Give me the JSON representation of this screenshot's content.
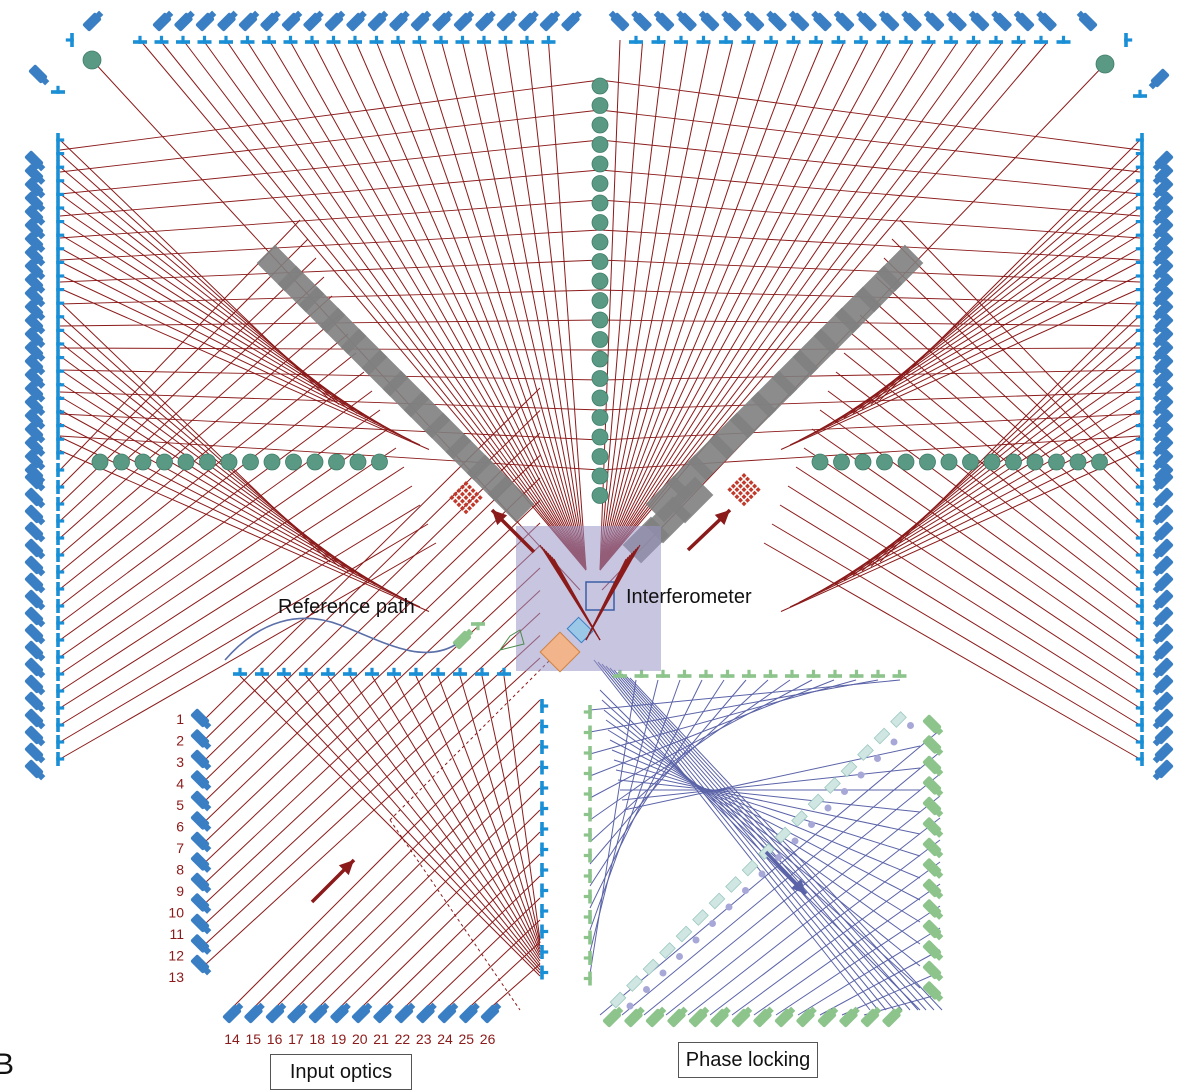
{
  "labels": {
    "interferometer": "Interferometer",
    "reference_path": "Reference path",
    "input_optics": "Input optics",
    "phase_locking": "Phase locking",
    "panel_letter": "B"
  },
  "input_numbers_left": [
    "1",
    "2",
    "3",
    "4",
    "5",
    "6",
    "7",
    "8",
    "9",
    "10",
    "11",
    "12",
    "13"
  ],
  "input_numbers_bottom": [
    "14",
    "15",
    "16",
    "17",
    "18",
    "19",
    "20",
    "21",
    "22",
    "23",
    "24",
    "25",
    "26"
  ],
  "colors": {
    "beam_red": "#8b1a1a",
    "beam_blue": "#5b63a8",
    "fiber_blue": "#3a7fc4",
    "mirror_blue": "#1a8fd6",
    "green_optic": "#5a9a84",
    "green_light": "#8cc48c",
    "gray_block": "#7f7f7f",
    "interferometer_box": "#9b95c7",
    "beamsplitter_orange": "#f2b48a"
  },
  "icons": {
    "arrows": "arrow-icon",
    "detector_grid": "detector-grid-icon"
  }
}
